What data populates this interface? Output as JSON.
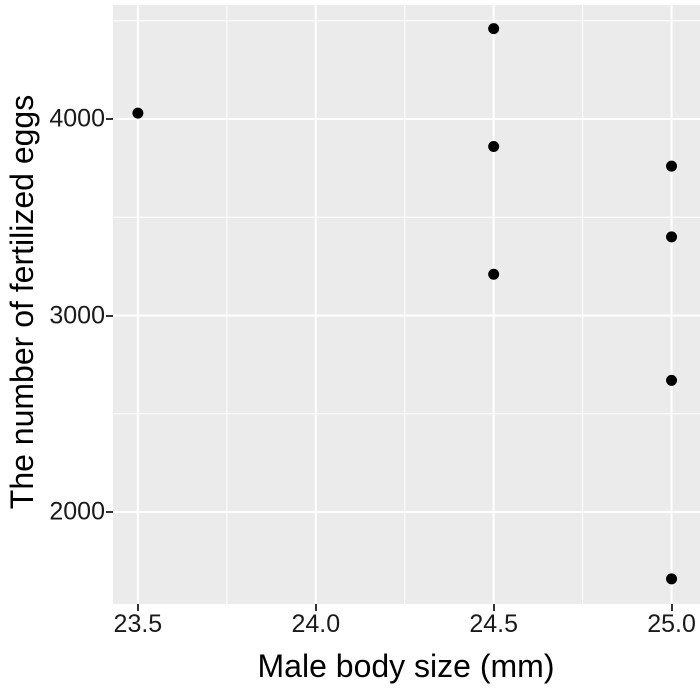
{
  "chart_data": {
    "type": "scatter",
    "title": "",
    "xlabel": "Male body size (mm)",
    "ylabel": "The number of fertilized eggs",
    "xlim": [
      23.43,
      25.08
    ],
    "ylim": [
      1532,
      4580
    ],
    "xticks": [
      23.5,
      24.0,
      24.5,
      25.0
    ],
    "xtick_labels": [
      "23.5",
      "24.0",
      "24.5",
      "25.0"
    ],
    "yticks": [
      2000,
      3000,
      4000
    ],
    "ytick_labels": [
      "2000",
      "3000",
      "4000"
    ],
    "x_minor_ticks": [
      23.75,
      24.25,
      24.75
    ],
    "y_minor_ticks": [
      1500,
      2500,
      3500,
      4500
    ],
    "grid": true,
    "legend": "none",
    "points": [
      {
        "x": 23.5,
        "y": 4030
      },
      {
        "x": 24.5,
        "y": 4460
      },
      {
        "x": 24.5,
        "y": 3860
      },
      {
        "x": 24.5,
        "y": 3210
      },
      {
        "x": 25.0,
        "y": 3760
      },
      {
        "x": 25.0,
        "y": 3400
      },
      {
        "x": 25.0,
        "y": 2670
      },
      {
        "x": 25.0,
        "y": 1660
      }
    ],
    "style": {
      "panel_bg": "#EBEBEB",
      "grid_color": "#FFFFFF",
      "point_color": "#000000",
      "point_radius": 5.5,
      "text_color": "#000000"
    }
  }
}
